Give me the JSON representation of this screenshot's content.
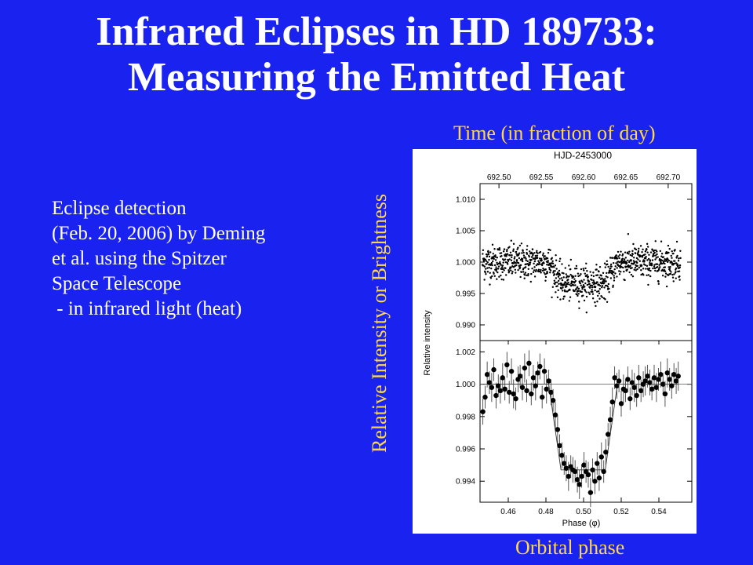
{
  "slide": {
    "title_lines": [
      "Infrared Eclipses in HD 189733:",
      "Measuring the Emitted Heat"
    ],
    "bullet_lines": [
      "Eclipse detection",
      "(Feb. 20, 2006) by Deming",
      "et al. using the Spitzer",
      "Space Telescope",
      " - in infrared light (heat)"
    ],
    "annotation_top": "Time (in fraction of day)",
    "annotation_left": "Relative Intensity or Brightness",
    "annotation_bottom": "Orbital phase",
    "colors": {
      "background": "#1a22f0",
      "title": "#ffffff",
      "annotation": "#ffd84a"
    }
  },
  "chart_data": {
    "type": "scatter",
    "top_axis_title": "HJD-2453000",
    "top_ticks": [
      "692.50",
      "692.55",
      "692.60",
      "692.65",
      "692.70"
    ],
    "top_tick_values": [
      692.5,
      692.55,
      692.6,
      692.65,
      692.7
    ],
    "xlabel": "Phase (φ)",
    "x_ticks": [
      "0.46",
      "0.48",
      "0.50",
      "0.52",
      "0.54"
    ],
    "x_tick_values": [
      0.46,
      0.48,
      0.5,
      0.52,
      0.54
    ],
    "xlim": [
      0.445,
      0.5575
    ],
    "ylabel": "Relative intensity",
    "eclipse": {
      "ingress_start": 0.4815,
      "ingress_end": 0.488,
      "egress_start": 0.5115,
      "egress_end": 0.518
    },
    "panels": [
      {
        "name": "raw",
        "ylim": [
          0.9875,
          1.0125
        ],
        "y_ticks": [
          "1.010",
          "1.005",
          "1.000",
          "0.995",
          "0.990"
        ],
        "y_tick_values": [
          1.01,
          1.005,
          1.0,
          0.995,
          0.99
        ],
        "baseline": 1.0,
        "depth": 0.0034,
        "scatter": 0.0022,
        "n_points": 1000
      },
      {
        "name": "binned",
        "ylim": [
          0.9927,
          1.0027
        ],
        "y_ticks": [
          "1.002",
          "1.000",
          "0.998",
          "0.996",
          "0.994"
        ],
        "y_tick_values": [
          1.002,
          1.0,
          0.998,
          0.996,
          0.994
        ],
        "x": [
          0.4465,
          0.4477,
          0.4488,
          0.45,
          0.4512,
          0.4523,
          0.4535,
          0.4547,
          0.4558,
          0.457,
          0.4582,
          0.4593,
          0.4605,
          0.4617,
          0.4628,
          0.464,
          0.4652,
          0.4663,
          0.4675,
          0.4687,
          0.4698,
          0.471,
          0.4722,
          0.4733,
          0.4745,
          0.4757,
          0.4768,
          0.478,
          0.4792,
          0.4803,
          0.4815,
          0.4827,
          0.4838,
          0.485,
          0.4862,
          0.4873,
          0.4885,
          0.4897,
          0.4908,
          0.492,
          0.4932,
          0.4943,
          0.4955,
          0.4967,
          0.4978,
          0.499,
          0.5002,
          0.5013,
          0.5025,
          0.5037,
          0.5048,
          0.506,
          0.5072,
          0.5083,
          0.5095,
          0.5107,
          0.5118,
          0.513,
          0.5142,
          0.5153,
          0.5165,
          0.5177,
          0.5188,
          0.52,
          0.5212,
          0.5223,
          0.5235,
          0.5247,
          0.5258,
          0.527,
          0.5282,
          0.5293,
          0.5305,
          0.5317,
          0.5328,
          0.534,
          0.5352,
          0.5363,
          0.5375,
          0.5387,
          0.5398,
          0.541,
          0.5422,
          0.5433,
          0.5445,
          0.5457,
          0.5468,
          0.548,
          0.5492,
          0.5503
        ],
        "y": [
          0.9983,
          0.9992,
          1.0006,
          1.0001,
          0.9998,
          1.0009,
          0.9993,
          0.9999,
          0.9996,
          1.0004,
          0.9997,
          1.0012,
          0.9995,
          1.0008,
          0.9994,
          0.9991,
          1.0003,
          1.0005,
          0.9998,
          1.001,
          0.9996,
          1.0013,
          0.9994,
          1.0004,
          0.9999,
          1.0007,
          1.0011,
          0.9992,
          1.0008,
          0.9997,
          1.0002,
          0.9995,
          0.999,
          0.9981,
          0.9972,
          0.9962,
          0.9956,
          0.9951,
          0.9948,
          0.9943,
          0.9949,
          0.9947,
          0.9946,
          0.9941,
          0.9938,
          0.9943,
          0.995,
          0.9946,
          0.9944,
          0.9933,
          0.9947,
          0.994,
          0.9951,
          0.9942,
          0.9955,
          0.9946,
          0.9958,
          0.9969,
          0.9978,
          0.9989,
          1.0004,
          0.9999,
          1.0002,
          0.9988,
          0.9997,
          0.9996,
          1.0003,
          0.9991,
          1.0001,
          0.9998,
          0.9993,
          1.0004,
          0.9996,
          1.0,
          1.0002,
          1.0005,
          1.0001,
          0.9997,
          1.0004,
          0.9998,
          1.0003,
          1.0006,
          1.0,
          0.9994,
          1.0007,
          1.0003,
          0.9999,
          1.0006,
          1.0002,
          1.0005
        ],
        "err": [
          0.0008,
          0.0007,
          0.0008,
          0.0007,
          0.0009,
          0.0007,
          0.0008,
          0.0007,
          0.0008,
          0.0009,
          0.0007,
          0.0008,
          0.0007,
          0.0008,
          0.0009,
          0.0007,
          0.0008,
          0.0007,
          0.0008,
          0.0009,
          0.0007,
          0.0008,
          0.0007,
          0.0008,
          0.0009,
          0.0007,
          0.0008,
          0.0007,
          0.0008,
          0.0009,
          0.0007,
          0.0008,
          0.0007,
          0.0008,
          0.0009,
          0.0007,
          0.0008,
          0.0007,
          0.0008,
          0.0009,
          0.0007,
          0.0008,
          0.0007,
          0.0008,
          0.0009,
          0.0007,
          0.0008,
          0.0007,
          0.0008,
          0.0009,
          0.0007,
          0.0008,
          0.0007,
          0.0008,
          0.0009,
          0.0007,
          0.0008,
          0.0007,
          0.0008,
          0.0009,
          0.0007,
          0.0008,
          0.0007,
          0.0008,
          0.0009,
          0.0007,
          0.0008,
          0.0007,
          0.0008,
          0.0009,
          0.0007,
          0.0008,
          0.0007,
          0.0008,
          0.0009,
          0.0007,
          0.0008,
          0.0007,
          0.0008,
          0.0009,
          0.0007,
          0.0008,
          0.0007,
          0.0008,
          0.0009,
          0.0007,
          0.0008,
          0.0007,
          0.0008,
          0.0009
        ]
      }
    ]
  }
}
